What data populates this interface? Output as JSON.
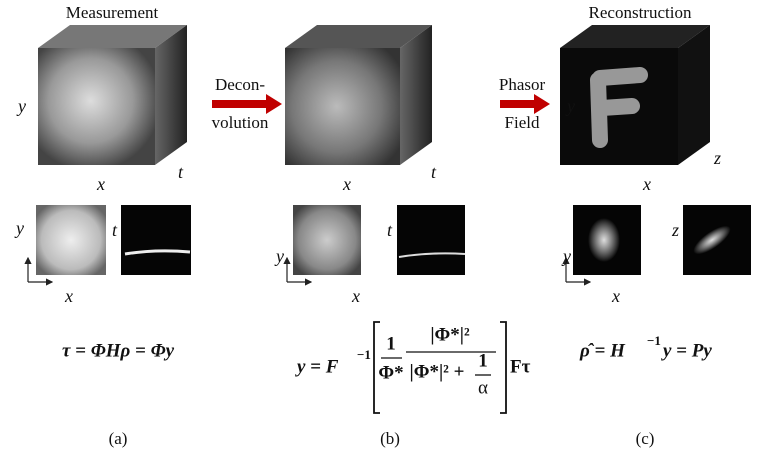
{
  "panels": [
    {
      "title": "Measurement",
      "cube_axes": {
        "y": "y",
        "x": "x",
        "depth": "t"
      },
      "xy_axes": {
        "y": "y",
        "x": "x"
      },
      "second_axis": "t",
      "equation": "τ = ΦHρ = Φy",
      "caption": "(a)"
    },
    {
      "cube_axes": {
        "x": "x",
        "depth": "t"
      },
      "xy_axes": {
        "y": "y",
        "x": "x"
      },
      "second_axis": "t",
      "equation_parts": [
        "y = F",
        "−1",
        "1",
        "Φ*",
        "|Φ*|²",
        "|Φ*|² +",
        "1",
        "α",
        "Fτ"
      ],
      "caption": "(b)"
    },
    {
      "title": "Reconstruction",
      "cube_axes": {
        "y": "y",
        "x": "x",
        "depth": "z"
      },
      "xy_axes": {
        "y": "y",
        "x": "x"
      },
      "second_axis": "z",
      "equation_parts": [
        "ρ̂ = H",
        "−1",
        "y = Py"
      ],
      "caption": "(c)"
    }
  ],
  "arrows": [
    {
      "lines": [
        "Decon-",
        "volution"
      ]
    },
    {
      "lines": [
        "Phasor",
        "Field"
      ]
    }
  ]
}
